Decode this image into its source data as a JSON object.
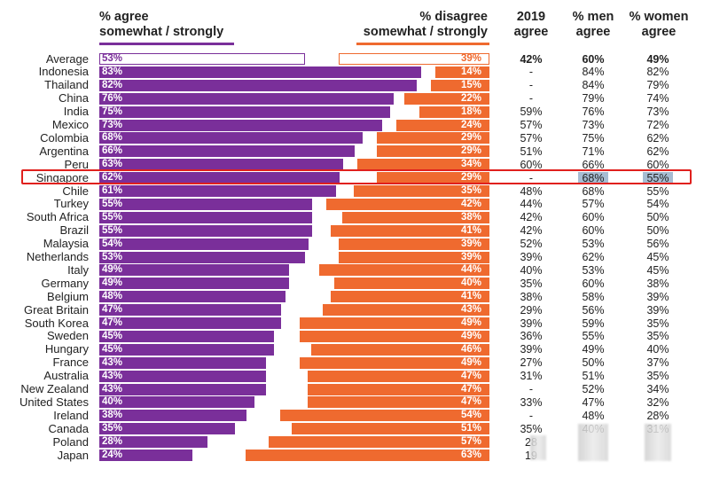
{
  "headers": {
    "agree_line1": "% agree",
    "agree_line2": "somewhat / strongly",
    "disagree_line1": "% disagree",
    "disagree_line2": "somewhat / strongly",
    "col2019_line1": "2019",
    "col2019_line2": "agree",
    "men_line1": "% men",
    "men_line2": "agree",
    "women_line1": "% women",
    "women_line2": "agree"
  },
  "colors": {
    "agree": "#7a2f9a",
    "disagree": "#ef6a2f",
    "highlight": "#e0201d"
  },
  "highlighted_country": "Singapore",
  "chart_data": {
    "type": "bar",
    "orientation": "horizontal-diverging",
    "categories": [
      "Average",
      "Indonesia",
      "Thailand",
      "China",
      "India",
      "Mexico",
      "Colombia",
      "Argentina",
      "Peru",
      "Singapore",
      "Chile",
      "Turkey",
      "South Africa",
      "Brazil",
      "Malaysia",
      "Netherlands",
      "Italy",
      "Germany",
      "Belgium",
      "Great Britain",
      "South Korea",
      "Sweden",
      "Hungary",
      "France",
      "Australia",
      "New Zealand",
      "United States",
      "Ireland",
      "Canada",
      "Poland",
      "Japan"
    ],
    "series": [
      {
        "name": "% agree somewhat / strongly",
        "values": [
          53,
          83,
          82,
          76,
          75,
          73,
          68,
          66,
          63,
          62,
          61,
          55,
          55,
          55,
          54,
          53,
          49,
          49,
          48,
          47,
          47,
          45,
          45,
          43,
          43,
          43,
          40,
          38,
          35,
          28,
          24
        ]
      },
      {
        "name": "% disagree somewhat / strongly",
        "values": [
          39,
          14,
          15,
          22,
          18,
          24,
          29,
          29,
          34,
          29,
          35,
          42,
          38,
          41,
          39,
          39,
          44,
          40,
          41,
          43,
          49,
          49,
          46,
          49,
          47,
          47,
          47,
          54,
          51,
          57,
          63
        ]
      }
    ],
    "table_columns": [
      {
        "name": "2019 agree",
        "values": [
          "42%",
          "-",
          "-",
          "-",
          "59%",
          "57%",
          "57%",
          "51%",
          "60%",
          "-",
          "48%",
          "44%",
          "42%",
          "42%",
          "52%",
          "39%",
          "40%",
          "35%",
          "38%",
          "29%",
          "39%",
          "36%",
          "39%",
          "27%",
          "31%",
          "-",
          "33%",
          "-",
          "35%",
          "28",
          "19"
        ]
      },
      {
        "name": "% men agree",
        "values": [
          "60%",
          "84%",
          "84%",
          "79%",
          "76%",
          "73%",
          "75%",
          "71%",
          "66%",
          "68%",
          "68%",
          "57%",
          "60%",
          "60%",
          "53%",
          "62%",
          "53%",
          "60%",
          "58%",
          "56%",
          "59%",
          "55%",
          "49%",
          "50%",
          "51%",
          "52%",
          "47%",
          "48%",
          "40%",
          "",
          ""
        ]
      },
      {
        "name": "% women agree",
        "values": [
          "49%",
          "82%",
          "79%",
          "74%",
          "73%",
          "72%",
          "62%",
          "62%",
          "60%",
          "55%",
          "55%",
          "54%",
          "50%",
          "50%",
          "56%",
          "45%",
          "45%",
          "38%",
          "39%",
          "39%",
          "35%",
          "35%",
          "40%",
          "37%",
          "35%",
          "34%",
          "32%",
          "28%",
          "31%",
          "",
          ""
        ]
      }
    ]
  }
}
